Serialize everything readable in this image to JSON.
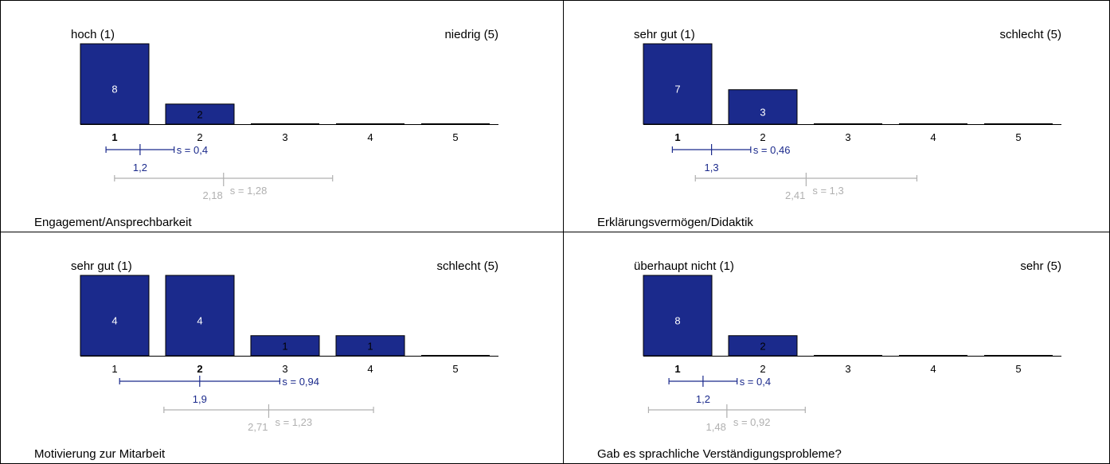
{
  "chart_data": [
    {
      "type": "bar",
      "title": "Engagement/Ansprechbarkeit",
      "left_label": "hoch (1)",
      "right_label": "niedrig (5)",
      "categories": [
        "1",
        "2",
        "3",
        "4",
        "5"
      ],
      "values": [
        8,
        2,
        0,
        0,
        0
      ],
      "value_labels": [
        "8",
        "2",
        "",
        "",
        ""
      ],
      "ylim": [
        0,
        8
      ],
      "mode_category": "1",
      "mean": 1.2,
      "mean_label": "1,2",
      "sd": 0.4,
      "sd_label": "s = 0,4",
      "ref_mean": 2.18,
      "ref_mean_label": "2,18",
      "ref_sd": 1.28,
      "ref_sd_label": "s = 1,28",
      "colors": {
        "bar": "#1b2a8c",
        "stat": "#1b2a8c",
        "ref": "#b0b0b0"
      }
    },
    {
      "type": "bar",
      "title": "Erklärungsvermögen/Didaktik",
      "left_label": "sehr gut (1)",
      "right_label": "schlecht (5)",
      "categories": [
        "1",
        "2",
        "3",
        "4",
        "5"
      ],
      "values": [
        7,
        3,
        0,
        0,
        0
      ],
      "value_labels": [
        "7",
        "3",
        "",
        "",
        ""
      ],
      "ylim": [
        0,
        7
      ],
      "mode_category": "1",
      "mean": 1.3,
      "mean_label": "1,3",
      "sd": 0.46,
      "sd_label": "s = 0,46",
      "ref_mean": 2.41,
      "ref_mean_label": "2,41",
      "ref_sd": 1.3,
      "ref_sd_label": "s = 1,3",
      "colors": {
        "bar": "#1b2a8c",
        "stat": "#1b2a8c",
        "ref": "#b0b0b0"
      }
    },
    {
      "type": "bar",
      "title": "Motivierung zur Mitarbeit",
      "left_label": "sehr gut (1)",
      "right_label": "schlecht (5)",
      "categories": [
        "1",
        "2",
        "3",
        "4",
        "5"
      ],
      "values": [
        4,
        4,
        1,
        1,
        0
      ],
      "value_labels": [
        "4",
        "4",
        "1",
        "1",
        ""
      ],
      "ylim": [
        0,
        4
      ],
      "mode_category": "2",
      "mean": 1.9,
      "mean_label": "1,9",
      "sd": 0.94,
      "sd_label": "s = 0,94",
      "ref_mean": 2.71,
      "ref_mean_label": "2,71",
      "ref_sd": 1.23,
      "ref_sd_label": "s = 1,23",
      "colors": {
        "bar": "#1b2a8c",
        "stat": "#1b2a8c",
        "ref": "#b0b0b0"
      }
    },
    {
      "type": "bar",
      "title": "Gab es sprachliche Verständigungsprobleme?",
      "left_label": "überhaupt nicht (1)",
      "right_label": "sehr (5)",
      "categories": [
        "1",
        "2",
        "3",
        "4",
        "5"
      ],
      "values": [
        8,
        2,
        0,
        0,
        0
      ],
      "value_labels": [
        "8",
        "2",
        "",
        "",
        ""
      ],
      "ylim": [
        0,
        8
      ],
      "mode_category": "1",
      "mean": 1.2,
      "mean_label": "1,2",
      "sd": 0.4,
      "sd_label": "s = 0,4",
      "ref_mean": 1.48,
      "ref_mean_label": "1,48",
      "ref_sd": 0.92,
      "ref_sd_label": "s = 0,92",
      "colors": {
        "bar": "#1b2a8c",
        "stat": "#1b2a8c",
        "ref": "#b0b0b0"
      }
    }
  ]
}
